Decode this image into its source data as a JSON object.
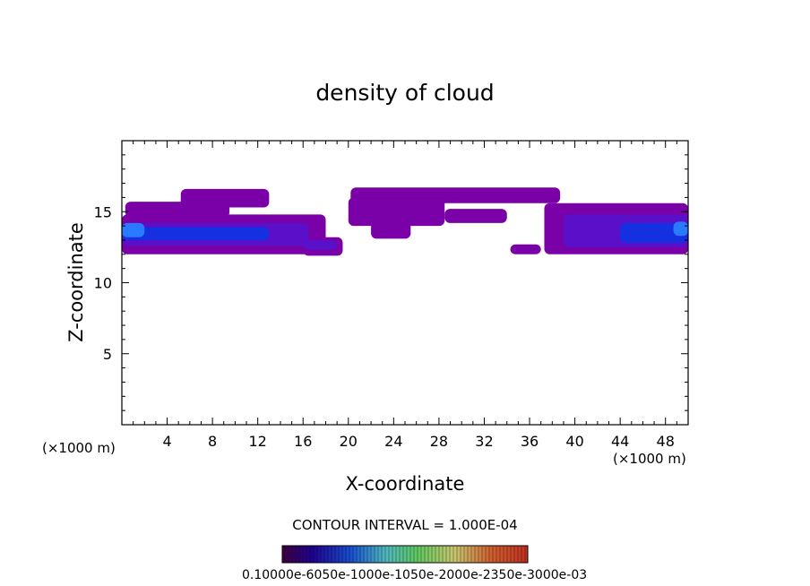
{
  "chart_data": {
    "type": "heatmap",
    "title": "density of cloud",
    "xlabel": "X-coordinate",
    "ylabel": "Z-coordinate",
    "x_unit_left": "(×1000 m)",
    "x_unit_right": "(×1000 m)",
    "xlim": [
      0,
      50
    ],
    "ylim": [
      0,
      20
    ],
    "x_ticks": [
      4,
      8,
      12,
      16,
      20,
      24,
      28,
      32,
      36,
      40,
      44,
      48
    ],
    "y_ticks": [
      5,
      10,
      15
    ],
    "contour_interval_text": "CONTOUR INTERVAL = 1.000E-04",
    "colorbar_labels_text": "0.10000e-6050e-1000e-1050e-2000e-2350e-3000e-03",
    "colorbar_levels": [
      5e-05,
      0.0001,
      0.00015,
      0.0002,
      0.00025,
      0.0003
    ],
    "colors": {
      "low": "#7a00a8",
      "mid": "#5a10c8",
      "high": "#1530e0",
      "peak": "#2a7aff"
    },
    "cloud_regions": [
      {
        "level": "low",
        "x0": 0.3,
        "x1": 9.5,
        "z0": 14.6,
        "z1": 15.7
      },
      {
        "level": "low",
        "x0": 5.2,
        "x1": 13.0,
        "z0": 15.3,
        "z1": 16.6
      },
      {
        "level": "low",
        "x0": 0.0,
        "x1": 18.0,
        "z0": 12.0,
        "z1": 14.8
      },
      {
        "level": "low",
        "x0": 16.0,
        "x1": 19.5,
        "z0": 11.9,
        "z1": 13.2
      },
      {
        "level": "low",
        "x0": 20.2,
        "x1": 38.7,
        "z0": 15.6,
        "z1": 16.7
      },
      {
        "level": "low",
        "x0": 20.0,
        "x1": 28.5,
        "z0": 14.0,
        "z1": 16.0
      },
      {
        "level": "low",
        "x0": 22.0,
        "x1": 25.5,
        "z0": 13.1,
        "z1": 14.3
      },
      {
        "level": "low",
        "x0": 28.5,
        "x1": 34.0,
        "z0": 14.2,
        "z1": 15.2
      },
      {
        "level": "low",
        "x0": 34.3,
        "x1": 37.0,
        "z0": 12.0,
        "z1": 12.7
      },
      {
        "level": "low",
        "x0": 37.3,
        "x1": 50.0,
        "z0": 12.0,
        "z1": 15.6
      },
      {
        "level": "mid",
        "x0": 0.0,
        "x1": 16.5,
        "z0": 12.6,
        "z1": 14.2
      },
      {
        "level": "mid",
        "x0": 16.0,
        "x1": 19.0,
        "z0": 12.3,
        "z1": 13.0
      },
      {
        "level": "mid",
        "x0": 39.0,
        "x1": 50.0,
        "z0": 12.5,
        "z1": 14.8
      },
      {
        "level": "high",
        "x0": 0.0,
        "x1": 13.0,
        "z0": 13.0,
        "z1": 13.9
      },
      {
        "level": "high",
        "x0": 44.0,
        "x1": 50.0,
        "z0": 12.8,
        "z1": 14.2
      },
      {
        "level": "peak",
        "x0": 0.0,
        "x1": 2.0,
        "z0": 13.2,
        "z1": 14.2
      },
      {
        "level": "peak",
        "x0": 48.7,
        "x1": 50.0,
        "z0": 13.3,
        "z1": 14.3
      }
    ]
  }
}
